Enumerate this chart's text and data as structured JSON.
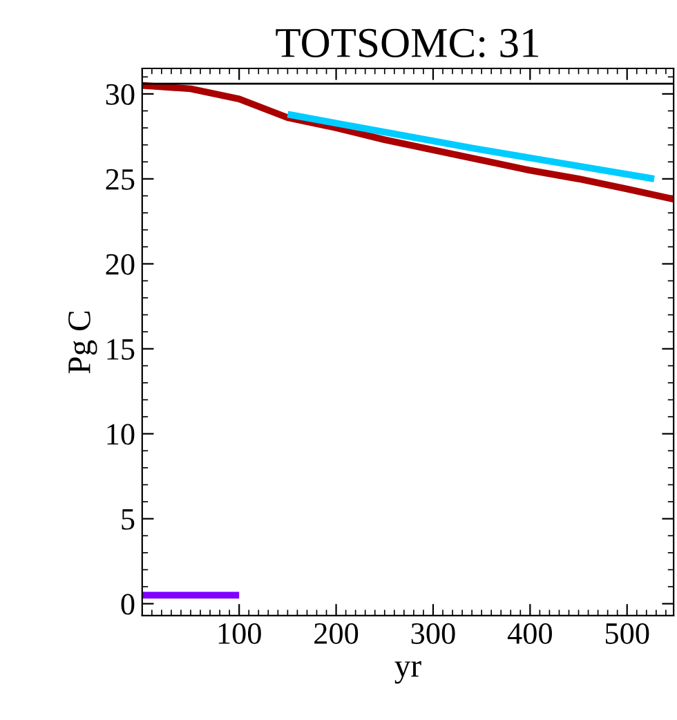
{
  "chart_data": {
    "type": "line",
    "title": "TOTSOMC: 31",
    "xlabel": "yr",
    "ylabel": "Pg C",
    "xlim": [
      0,
      548
    ],
    "xticks": [
      100,
      200,
      300,
      400,
      500
    ],
    "ylim": [
      -0.7,
      31.5
    ],
    "yticks": [
      0,
      5,
      10,
      15,
      20,
      25,
      30
    ],
    "grid": false,
    "legend": false,
    "marker": "none",
    "line_style": "solid",
    "ref_lines": [
      {
        "axis": "y",
        "value": 30.6,
        "color": "#000000"
      }
    ],
    "series": [
      {
        "color": "#aa0000",
        "x": [
          0,
          50,
          100,
          150,
          200,
          250,
          300,
          350,
          400,
          450,
          500,
          548
        ],
        "values": [
          30.5,
          30.3,
          29.7,
          28.6,
          28.0,
          27.3,
          26.7,
          26.1,
          25.5,
          25.0,
          24.4,
          23.8
        ]
      },
      {
        "color": "#00ccff",
        "x": [
          150,
          341,
          528
        ],
        "values": [
          28.8,
          26.8,
          25.0
        ]
      },
      {
        "color": "#7f00ff",
        "x": [
          0,
          100
        ],
        "values": [
          0.5,
          0.5
        ]
      }
    ]
  }
}
